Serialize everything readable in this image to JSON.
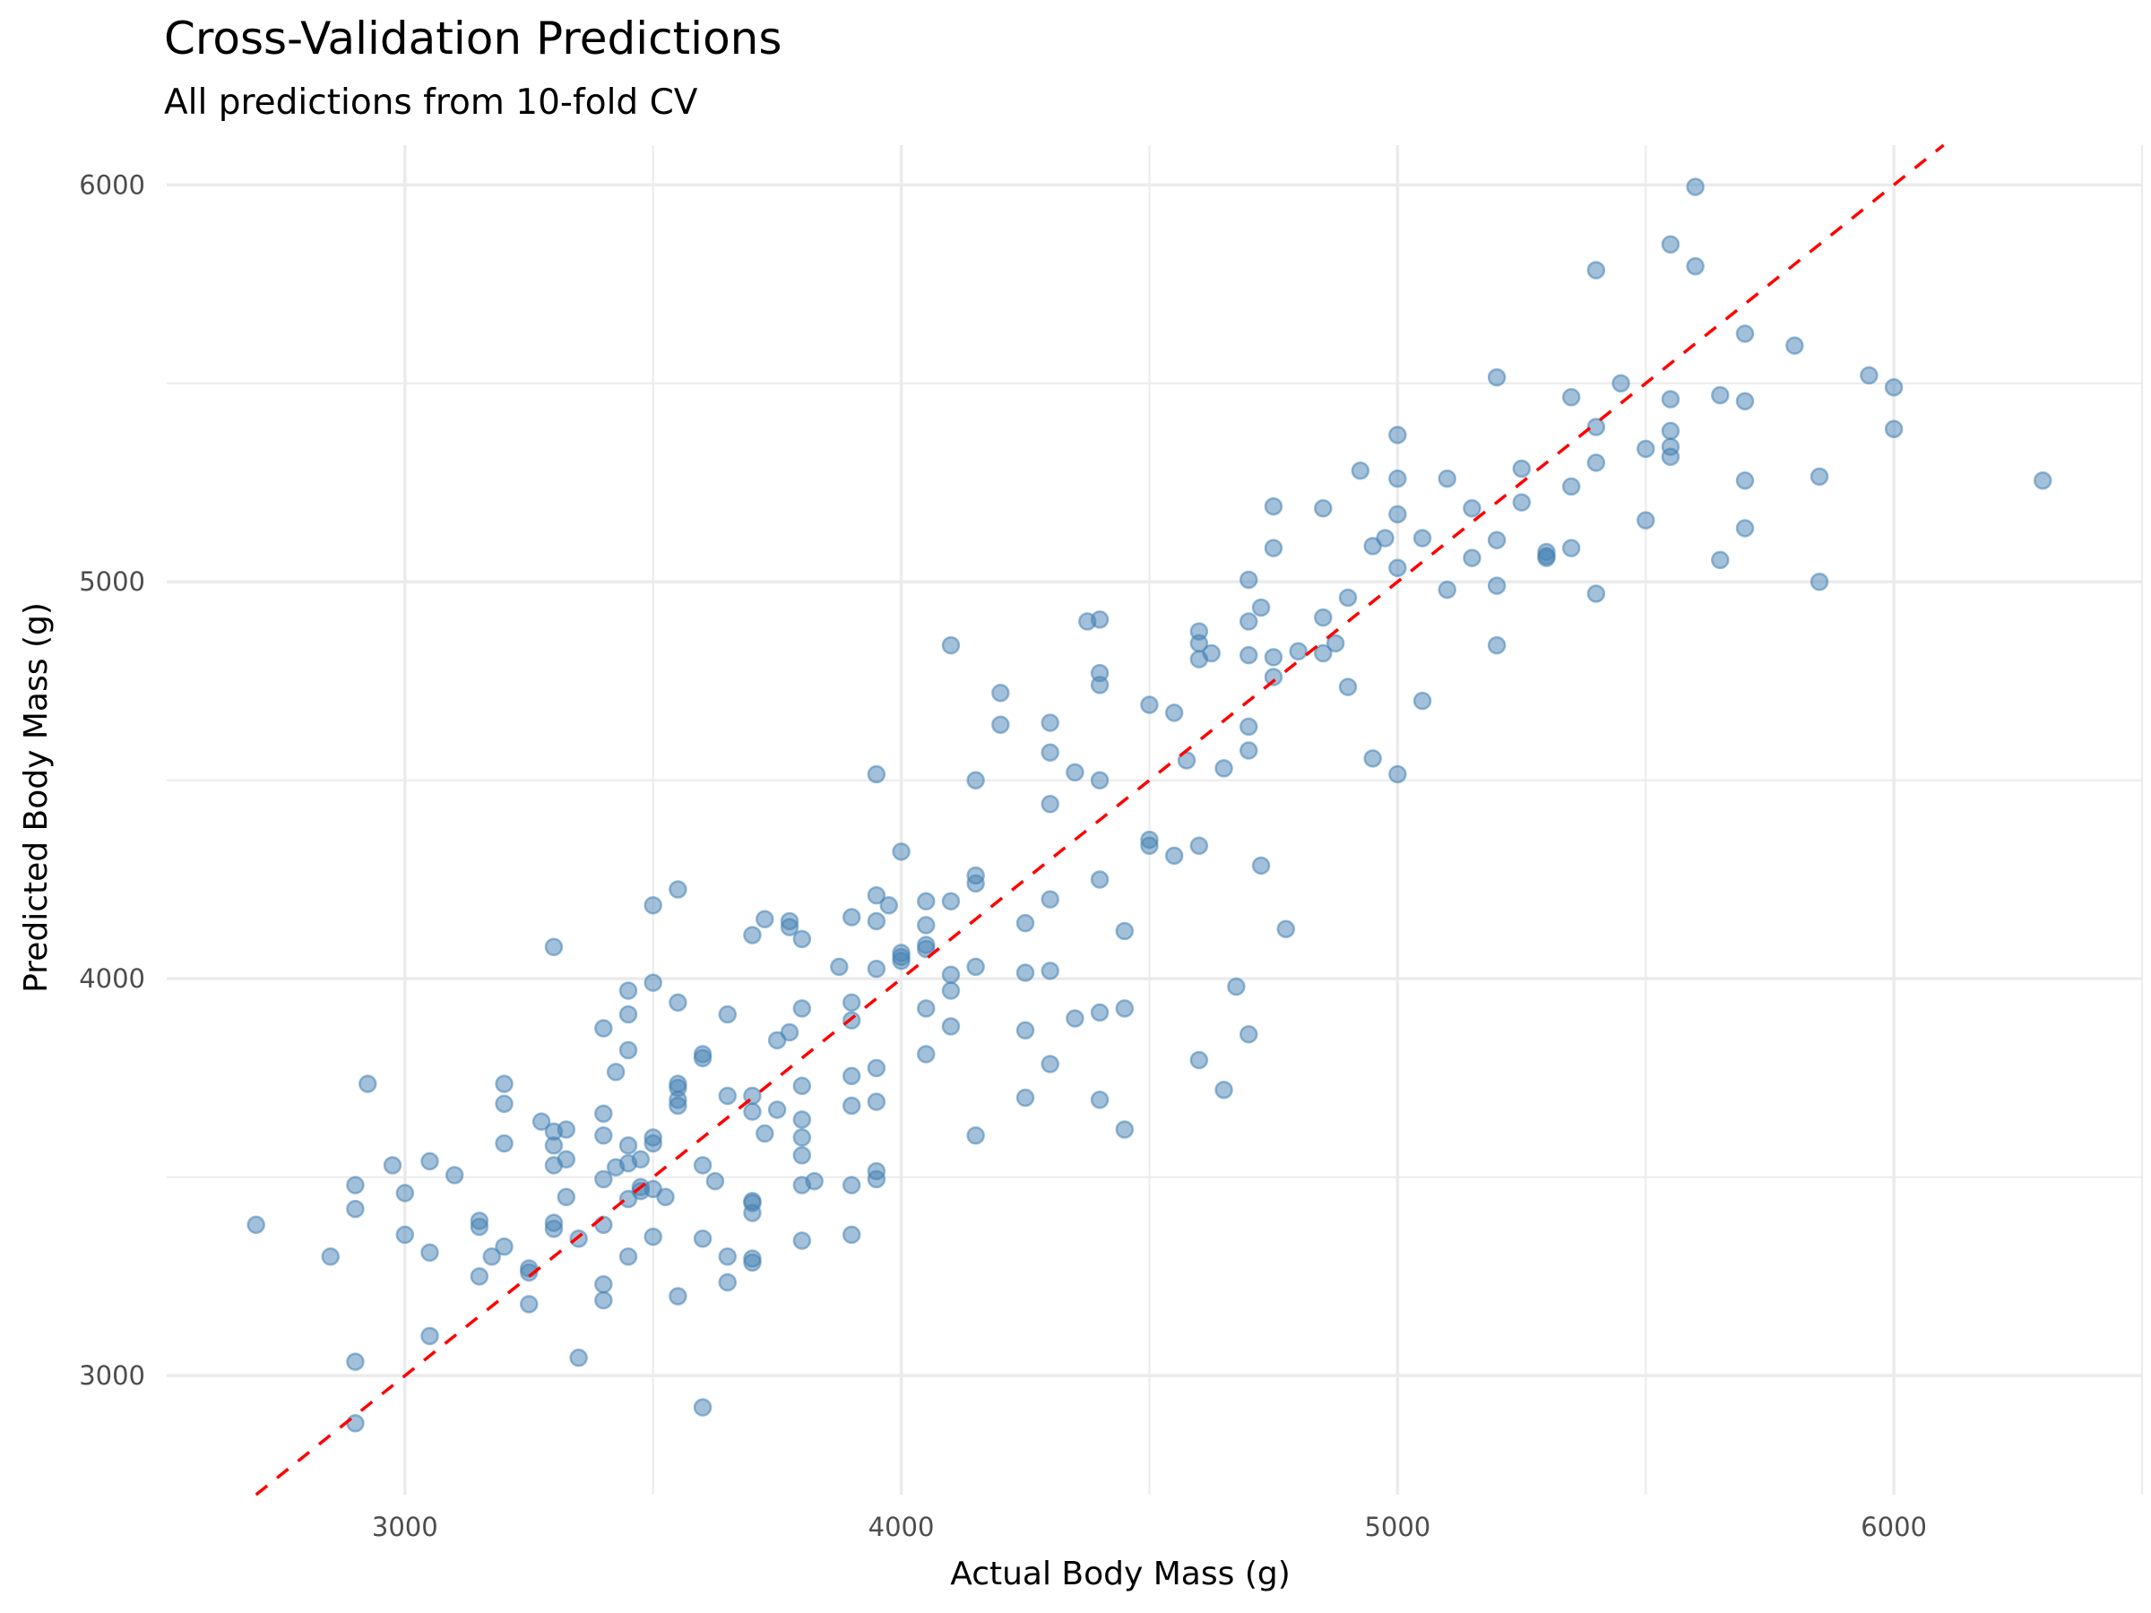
{
  "chart_data": {
    "type": "scatter",
    "title": "Cross-Validation Predictions",
    "subtitle": "All predictions from 10-fold CV",
    "xlabel": "Actual Body Mass (g)",
    "ylabel": "Predicted Body Mass (g)",
    "xlim": [
      2520,
      6500
    ],
    "ylim": [
      2700,
      6100
    ],
    "x_ticks": [
      3000,
      4000,
      5000,
      6000
    ],
    "x_tick_labels": [
      "3000",
      "4000",
      "5000",
      "6000"
    ],
    "y_ticks": [
      3000,
      4000,
      5000,
      6000
    ],
    "y_tick_labels": [
      "3000",
      "4000",
      "5000",
      "6000"
    ],
    "grid": true,
    "reference_line": {
      "type": "identity",
      "slope": 1,
      "intercept": 0,
      "style": "dashed",
      "color": "#ff0000"
    },
    "point_color": "#4682b4",
    "points": [
      [
        2700,
        3380
      ],
      [
        2850,
        3300
      ],
      [
        2900,
        3480
      ],
      [
        2900,
        3420
      ],
      [
        2900,
        3035
      ],
      [
        2900,
        2880
      ],
      [
        2925,
        3735
      ],
      [
        2975,
        3530
      ],
      [
        3000,
        3460
      ],
      [
        3000,
        3355
      ],
      [
        3050,
        3540
      ],
      [
        3050,
        3310
      ],
      [
        3050,
        3100
      ],
      [
        3100,
        3505
      ],
      [
        3150,
        3390
      ],
      [
        3150,
        3375
      ],
      [
        3150,
        3250
      ],
      [
        3175,
        3300
      ],
      [
        3200,
        3735
      ],
      [
        3200,
        3685
      ],
      [
        3200,
        3585
      ],
      [
        3200,
        3325
      ],
      [
        3250,
        3270
      ],
      [
        3250,
        3260
      ],
      [
        3250,
        3180
      ],
      [
        3275,
        3640
      ],
      [
        3300,
        4080
      ],
      [
        3300,
        3615
      ],
      [
        3300,
        3580
      ],
      [
        3300,
        3530
      ],
      [
        3300,
        3385
      ],
      [
        3300,
        3370
      ],
      [
        3325,
        3620
      ],
      [
        3325,
        3545
      ],
      [
        3325,
        3450
      ],
      [
        3350,
        3345
      ],
      [
        3350,
        3045
      ],
      [
        3400,
        3875
      ],
      [
        3400,
        3660
      ],
      [
        3400,
        3605
      ],
      [
        3400,
        3495
      ],
      [
        3400,
        3380
      ],
      [
        3400,
        3230
      ],
      [
        3400,
        3190
      ],
      [
        3425,
        3765
      ],
      [
        3425,
        3525
      ],
      [
        3450,
        3970
      ],
      [
        3450,
        3910
      ],
      [
        3450,
        3820
      ],
      [
        3450,
        3580
      ],
      [
        3450,
        3535
      ],
      [
        3450,
        3445
      ],
      [
        3450,
        3300
      ],
      [
        3475,
        3545
      ],
      [
        3475,
        3475
      ],
      [
        3475,
        3465
      ],
      [
        3500,
        4185
      ],
      [
        3500,
        3990
      ],
      [
        3500,
        3600
      ],
      [
        3500,
        3585
      ],
      [
        3500,
        3470
      ],
      [
        3500,
        3350
      ],
      [
        3525,
        3450
      ],
      [
        3550,
        4225
      ],
      [
        3550,
        3940
      ],
      [
        3550,
        3735
      ],
      [
        3550,
        3725
      ],
      [
        3550,
        3695
      ],
      [
        3550,
        3680
      ],
      [
        3550,
        3200
      ],
      [
        3600,
        3810
      ],
      [
        3600,
        3800
      ],
      [
        3600,
        3530
      ],
      [
        3600,
        3345
      ],
      [
        3600,
        2920
      ],
      [
        3625,
        3490
      ],
      [
        3650,
        3910
      ],
      [
        3650,
        3705
      ],
      [
        3650,
        3300
      ],
      [
        3650,
        3235
      ],
      [
        3700,
        4110
      ],
      [
        3700,
        3705
      ],
      [
        3700,
        3665
      ],
      [
        3700,
        3440
      ],
      [
        3700,
        3435
      ],
      [
        3700,
        3410
      ],
      [
        3700,
        3295
      ],
      [
        3700,
        3285
      ],
      [
        3725,
        4150
      ],
      [
        3725,
        3610
      ],
      [
        3750,
        3845
      ],
      [
        3750,
        3670
      ],
      [
        3775,
        4145
      ],
      [
        3775,
        4130
      ],
      [
        3775,
        3865
      ],
      [
        3800,
        4100
      ],
      [
        3800,
        3925
      ],
      [
        3800,
        3730
      ],
      [
        3800,
        3645
      ],
      [
        3800,
        3600
      ],
      [
        3800,
        3555
      ],
      [
        3800,
        3480
      ],
      [
        3800,
        3340
      ],
      [
        3825,
        3490
      ],
      [
        3875,
        4030
      ],
      [
        3900,
        4155
      ],
      [
        3900,
        3940
      ],
      [
        3900,
        3895
      ],
      [
        3900,
        3755
      ],
      [
        3900,
        3680
      ],
      [
        3900,
        3480
      ],
      [
        3900,
        3355
      ],
      [
        3950,
        4515
      ],
      [
        3950,
        4210
      ],
      [
        3950,
        4145
      ],
      [
        3950,
        4025
      ],
      [
        3950,
        3775
      ],
      [
        3950,
        3690
      ],
      [
        3950,
        3515
      ],
      [
        3950,
        3495
      ],
      [
        3975,
        4185
      ],
      [
        4000,
        4320
      ],
      [
        4000,
        4065
      ],
      [
        4000,
        4055
      ],
      [
        4000,
        4045
      ],
      [
        4050,
        4195
      ],
      [
        4050,
        4135
      ],
      [
        4050,
        4085
      ],
      [
        4050,
        4075
      ],
      [
        4050,
        3925
      ],
      [
        4050,
        3810
      ],
      [
        4100,
        4840
      ],
      [
        4100,
        4195
      ],
      [
        4100,
        4010
      ],
      [
        4100,
        3970
      ],
      [
        4100,
        3880
      ],
      [
        4150,
        4500
      ],
      [
        4150,
        4260
      ],
      [
        4150,
        4240
      ],
      [
        4150,
        4030
      ],
      [
        4150,
        3605
      ],
      [
        4200,
        4720
      ],
      [
        4200,
        4640
      ],
      [
        4250,
        4140
      ],
      [
        4250,
        4015
      ],
      [
        4250,
        3870
      ],
      [
        4250,
        3700
      ],
      [
        4300,
        4645
      ],
      [
        4300,
        4570
      ],
      [
        4300,
        4440
      ],
      [
        4300,
        4200
      ],
      [
        4300,
        4020
      ],
      [
        4300,
        3785
      ],
      [
        4350,
        4520
      ],
      [
        4350,
        3900
      ],
      [
        4375,
        4900
      ],
      [
        4400,
        4905
      ],
      [
        4400,
        4770
      ],
      [
        4400,
        4740
      ],
      [
        4400,
        4500
      ],
      [
        4400,
        4250
      ],
      [
        4400,
        3915
      ],
      [
        4400,
        3695
      ],
      [
        4450,
        4120
      ],
      [
        4450,
        3925
      ],
      [
        4450,
        3620
      ],
      [
        4500,
        4690
      ],
      [
        4500,
        4350
      ],
      [
        4500,
        4335
      ],
      [
        4550,
        4670
      ],
      [
        4550,
        4310
      ],
      [
        4575,
        4550
      ],
      [
        4600,
        4875
      ],
      [
        4600,
        4845
      ],
      [
        4600,
        4805
      ],
      [
        4600,
        4335
      ],
      [
        4600,
        3795
      ],
      [
        4625,
        4820
      ],
      [
        4650,
        4530
      ],
      [
        4650,
        3720
      ],
      [
        4675,
        3980
      ],
      [
        4700,
        5005
      ],
      [
        4700,
        4900
      ],
      [
        4700,
        4815
      ],
      [
        4700,
        4635
      ],
      [
        4700,
        4575
      ],
      [
        4700,
        3860
      ],
      [
        4725,
        4935
      ],
      [
        4725,
        4285
      ],
      [
        4750,
        5190
      ],
      [
        4750,
        5085
      ],
      [
        4750,
        4810
      ],
      [
        4750,
        4760
      ],
      [
        4775,
        4125
      ],
      [
        4800,
        4825
      ],
      [
        4850,
        5185
      ],
      [
        4850,
        4910
      ],
      [
        4850,
        4820
      ],
      [
        4875,
        4845
      ],
      [
        4900,
        4960
      ],
      [
        4900,
        4735
      ],
      [
        4925,
        5280
      ],
      [
        4950,
        5090
      ],
      [
        4950,
        4555
      ],
      [
        4975,
        5110
      ],
      [
        5000,
        5370
      ],
      [
        5000,
        5260
      ],
      [
        5000,
        5170
      ],
      [
        5000,
        5035
      ],
      [
        5000,
        4515
      ],
      [
        5050,
        5110
      ],
      [
        5050,
        4700
      ],
      [
        5100,
        5260
      ],
      [
        5100,
        4980
      ],
      [
        5150,
        5185
      ],
      [
        5150,
        5060
      ],
      [
        5200,
        5515
      ],
      [
        5200,
        5105
      ],
      [
        5200,
        4990
      ],
      [
        5200,
        4840
      ],
      [
        5250,
        5285
      ],
      [
        5250,
        5200
      ],
      [
        5300,
        5075
      ],
      [
        5300,
        5065
      ],
      [
        5300,
        5060
      ],
      [
        5350,
        5465
      ],
      [
        5350,
        5240
      ],
      [
        5350,
        5085
      ],
      [
        5400,
        5785
      ],
      [
        5400,
        5390
      ],
      [
        5400,
        5300
      ],
      [
        5400,
        4970
      ],
      [
        5450,
        5500
      ],
      [
        5500,
        5335
      ],
      [
        5500,
        5155
      ],
      [
        5550,
        5850
      ],
      [
        5550,
        5460
      ],
      [
        5550,
        5380
      ],
      [
        5550,
        5340
      ],
      [
        5550,
        5315
      ],
      [
        5600,
        5995
      ],
      [
        5600,
        5795
      ],
      [
        5650,
        5470
      ],
      [
        5650,
        5055
      ],
      [
        5700,
        5625
      ],
      [
        5700,
        5455
      ],
      [
        5700,
        5255
      ],
      [
        5700,
        5135
      ],
      [
        5800,
        5595
      ],
      [
        5850,
        5265
      ],
      [
        5850,
        5000
      ],
      [
        5950,
        5520
      ],
      [
        6000,
        5490
      ],
      [
        6000,
        5385
      ],
      [
        6300,
        5255
      ]
    ]
  }
}
